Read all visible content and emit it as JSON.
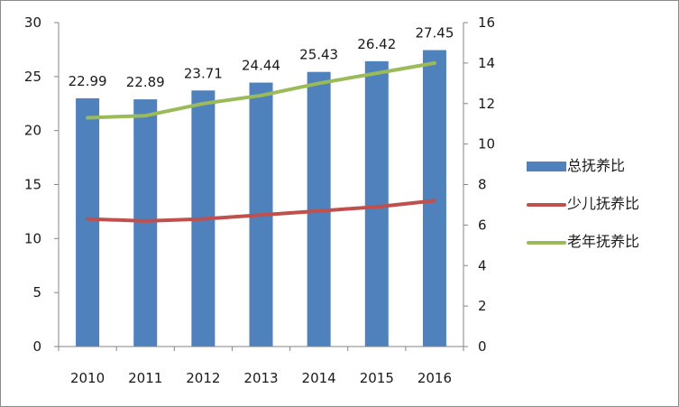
{
  "chart_data": {
    "type": "bar",
    "categories": [
      "2010",
      "2011",
      "2012",
      "2013",
      "2014",
      "2015",
      "2016"
    ],
    "series": [
      {
        "name": "总抚养比",
        "type": "bar",
        "axis": "left",
        "color": "#4f81bd",
        "values": [
          22.99,
          22.89,
          23.71,
          24.44,
          25.43,
          26.42,
          27.45
        ],
        "data_labels": [
          "22.99",
          "22.89",
          "23.71",
          "24.44",
          "25.43",
          "26.42",
          "27.45"
        ]
      },
      {
        "name": "少儿抚养比",
        "type": "line",
        "axis": "right",
        "color": "#c0504d",
        "values": [
          6.3,
          6.2,
          6.3,
          6.5,
          6.7,
          6.9,
          7.2
        ]
      },
      {
        "name": "老年抚养比",
        "type": "line",
        "axis": "right",
        "color": "#9bbb59",
        "values": [
          11.3,
          11.4,
          12.0,
          12.4,
          13.0,
          13.5,
          14.0
        ]
      }
    ],
    "y_left": {
      "ylim": [
        0,
        30
      ],
      "ticks": [
        "0",
        "5",
        "10",
        "15",
        "20",
        "25",
        "30"
      ]
    },
    "y_right": {
      "ylim": [
        0,
        16
      ],
      "ticks": [
        "0",
        "2",
        "4",
        "6",
        "8",
        "10",
        "12",
        "14",
        "16"
      ]
    },
    "title": "",
    "xlabel": "",
    "ylabel": "",
    "grid": false,
    "legend_position": "right"
  }
}
